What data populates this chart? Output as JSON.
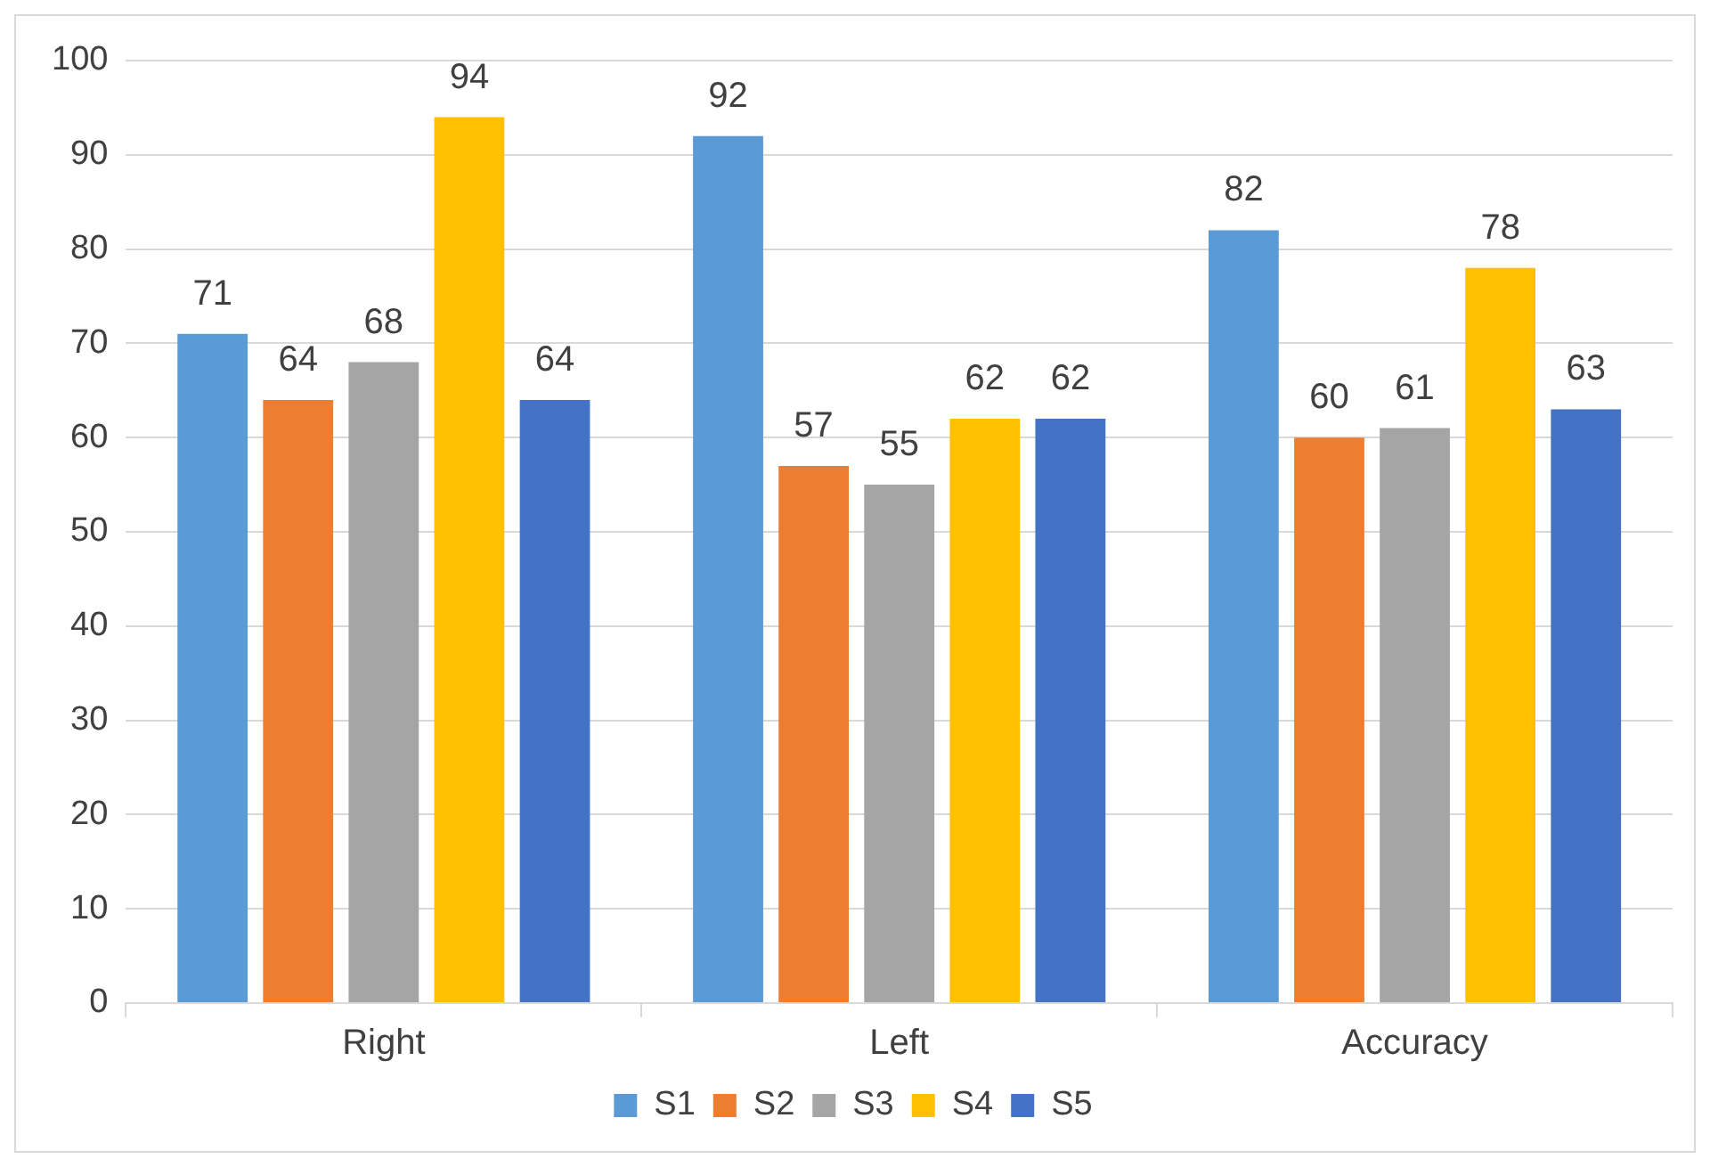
{
  "chart_data": {
    "type": "bar",
    "categories": [
      "Right",
      "Left",
      "Accuracy"
    ],
    "series": [
      {
        "name": "S1",
        "color": "#5b9bd5",
        "values": [
          71,
          92,
          82
        ]
      },
      {
        "name": "S2",
        "color": "#ed7d31",
        "values": [
          64,
          57,
          60
        ]
      },
      {
        "name": "S3",
        "color": "#a5a5a5",
        "values": [
          68,
          55,
          61
        ]
      },
      {
        "name": "S4",
        "color": "#ffc000",
        "values": [
          94,
          62,
          78
        ]
      },
      {
        "name": "S5",
        "color": "#4472c4",
        "values": [
          64,
          62,
          63
        ]
      }
    ],
    "ylim": [
      0,
      100
    ],
    "yticks": [
      0,
      10,
      20,
      30,
      40,
      50,
      60,
      70,
      80,
      90,
      100
    ],
    "grid": "y",
    "legend": "bottom",
    "data_labels": true
  }
}
